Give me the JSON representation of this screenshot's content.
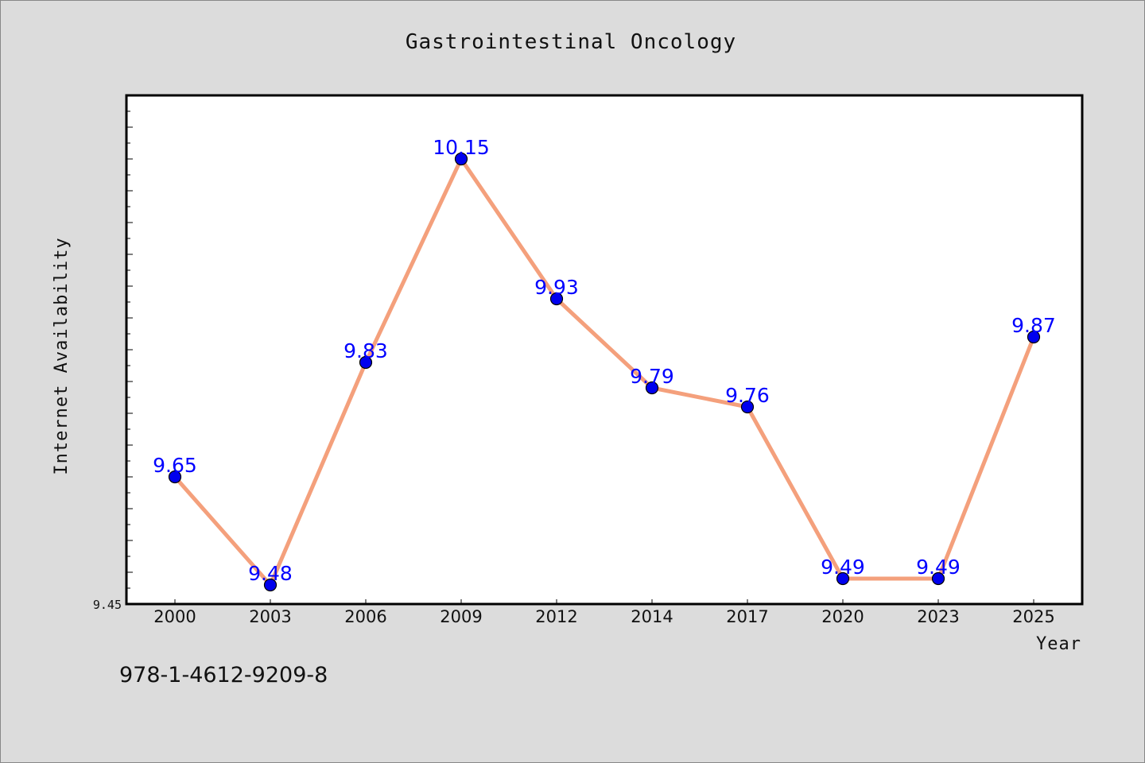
{
  "chart_data": {
    "type": "line",
    "title": "Gastrointestinal Oncology",
    "xlabel": "Year",
    "ylabel": "Internet Availability",
    "categories": [
      "2000",
      "2003",
      "2006",
      "2009",
      "2012",
      "2014",
      "2017",
      "2020",
      "2023",
      "2025"
    ],
    "series": [
      {
        "values": [
          9.65,
          9.48,
          9.83,
          10.15,
          9.93,
          9.79,
          9.76,
          9.49,
          9.49,
          9.87
        ]
      }
    ],
    "ylim": [
      9.45,
      10.25
    ],
    "ytick_labels": [
      "9.45"
    ],
    "grid": false,
    "line_color": "#f4a07c",
    "marker_color": "#0000ee",
    "label_color": "#0000ff"
  },
  "footer": {
    "isbn": "978-1-4612-9209-8"
  }
}
